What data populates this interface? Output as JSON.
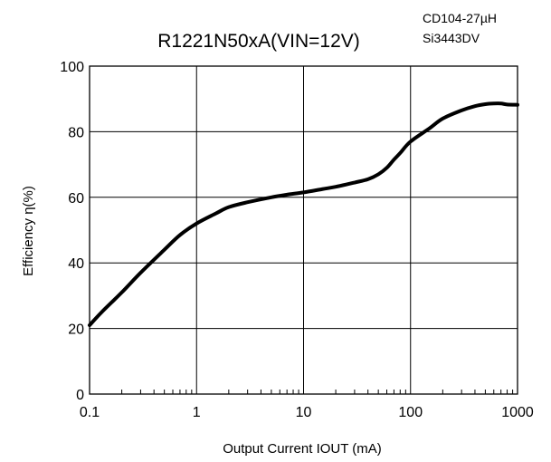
{
  "chart_data": {
    "type": "line",
    "title": "R1221N50xA(VIN=12V)",
    "notes": [
      "CD104-27µH",
      "Si3443DV"
    ],
    "xlabel": "Output Current IOUT (mA)",
    "ylabel": "Efficiency η(%)",
    "xscale": "log",
    "xlim": [
      0.1,
      1000
    ],
    "ylim": [
      0,
      100
    ],
    "grid": true,
    "x_ticks": [
      0.1,
      1,
      10,
      100,
      1000
    ],
    "x_tick_labels": [
      "0.1",
      "1",
      "10",
      "100",
      "1000"
    ],
    "y_ticks": [
      0,
      20,
      40,
      60,
      80,
      100
    ],
    "y_tick_labels": [
      "0",
      "20",
      "40",
      "60",
      "80",
      "100"
    ],
    "series": [
      {
        "x": [
          0.1,
          0.13,
          0.2,
          0.3,
          0.5,
          0.7,
          1.0,
          1.5,
          2.0,
          3.0,
          5.0,
          7.0,
          10,
          15,
          20,
          30,
          40,
          50,
          60,
          70,
          80,
          100,
          150,
          200,
          300,
          400,
          500,
          600,
          700,
          800,
          1000
        ],
        "values": [
          21,
          25,
          31,
          37,
          44,
          48.5,
          52,
          55,
          57,
          58.5,
          60,
          60.8,
          61.5,
          62.5,
          63.2,
          64.5,
          65.5,
          67,
          69,
          71.5,
          73.5,
          77,
          81,
          84,
          86.5,
          87.8,
          88.4,
          88.6,
          88.6,
          88.3,
          88.2
        ]
      }
    ]
  }
}
